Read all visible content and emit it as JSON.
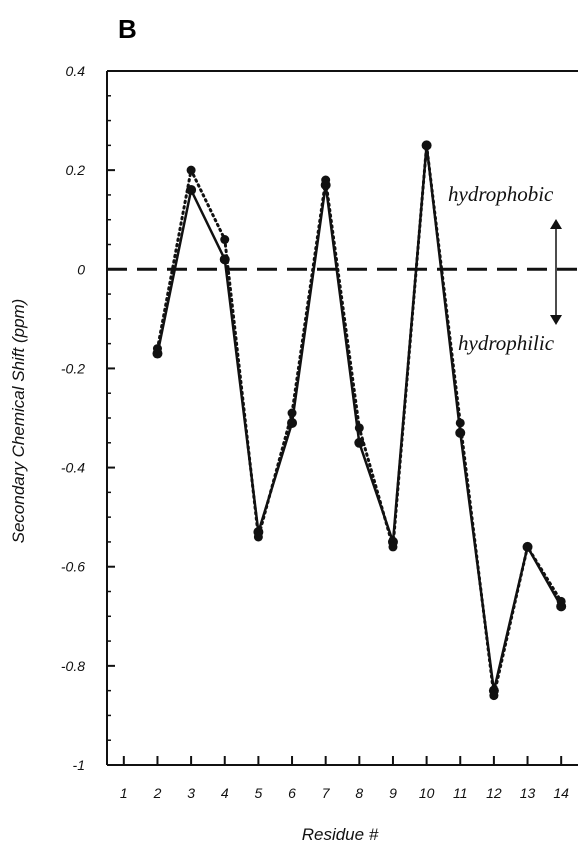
{
  "panel_label": "B",
  "chart_data": {
    "type": "line",
    "xlabel": "Residue #",
    "ylabel": "Secondary Chemical Shift (ppm)",
    "xlim": [
      0.5,
      14.5
    ],
    "ylim": [
      -1,
      0.4
    ],
    "x_ticks": [
      1,
      2,
      3,
      4,
      5,
      6,
      7,
      8,
      9,
      10,
      11,
      12,
      13,
      14
    ],
    "x_tick_labels": [
      "1",
      "2",
      "3",
      "4",
      "5",
      "6",
      "7",
      "8",
      "9",
      "10",
      "11",
      "12",
      "13",
      "14"
    ],
    "y_ticks": [
      0.4,
      0.2,
      0,
      -0.2,
      -0.4,
      -0.6,
      -0.8,
      -1
    ],
    "y_tick_labels": [
      "0.4",
      "0.2",
      "0",
      "-0.2",
      "-0.4",
      "-0.6",
      "-0.8",
      "-1"
    ],
    "reference_line": {
      "y": 0,
      "style": "dashed"
    },
    "series": [
      {
        "style": "solid",
        "x": [
          2,
          3,
          4,
          5,
          6,
          7,
          8,
          9,
          10,
          11,
          12,
          13,
          14
        ],
        "values": [
          -0.17,
          0.16,
          0.02,
          -0.53,
          -0.31,
          0.17,
          -0.35,
          -0.55,
          0.25,
          -0.33,
          -0.85,
          -0.56,
          -0.68
        ]
      },
      {
        "style": "dotted",
        "x": [
          2,
          3,
          4,
          5,
          6,
          7,
          8,
          9,
          10,
          11,
          12,
          13,
          14
        ],
        "values": [
          -0.16,
          0.2,
          0.06,
          -0.54,
          -0.29,
          0.18,
          -0.32,
          -0.56,
          0.25,
          -0.31,
          -0.86,
          -0.56,
          -0.67
        ]
      }
    ],
    "annotations": [
      "hydrophobic",
      "hydrophilic"
    ],
    "colors": {
      "line": "#111111",
      "background": "#ffffff"
    }
  }
}
